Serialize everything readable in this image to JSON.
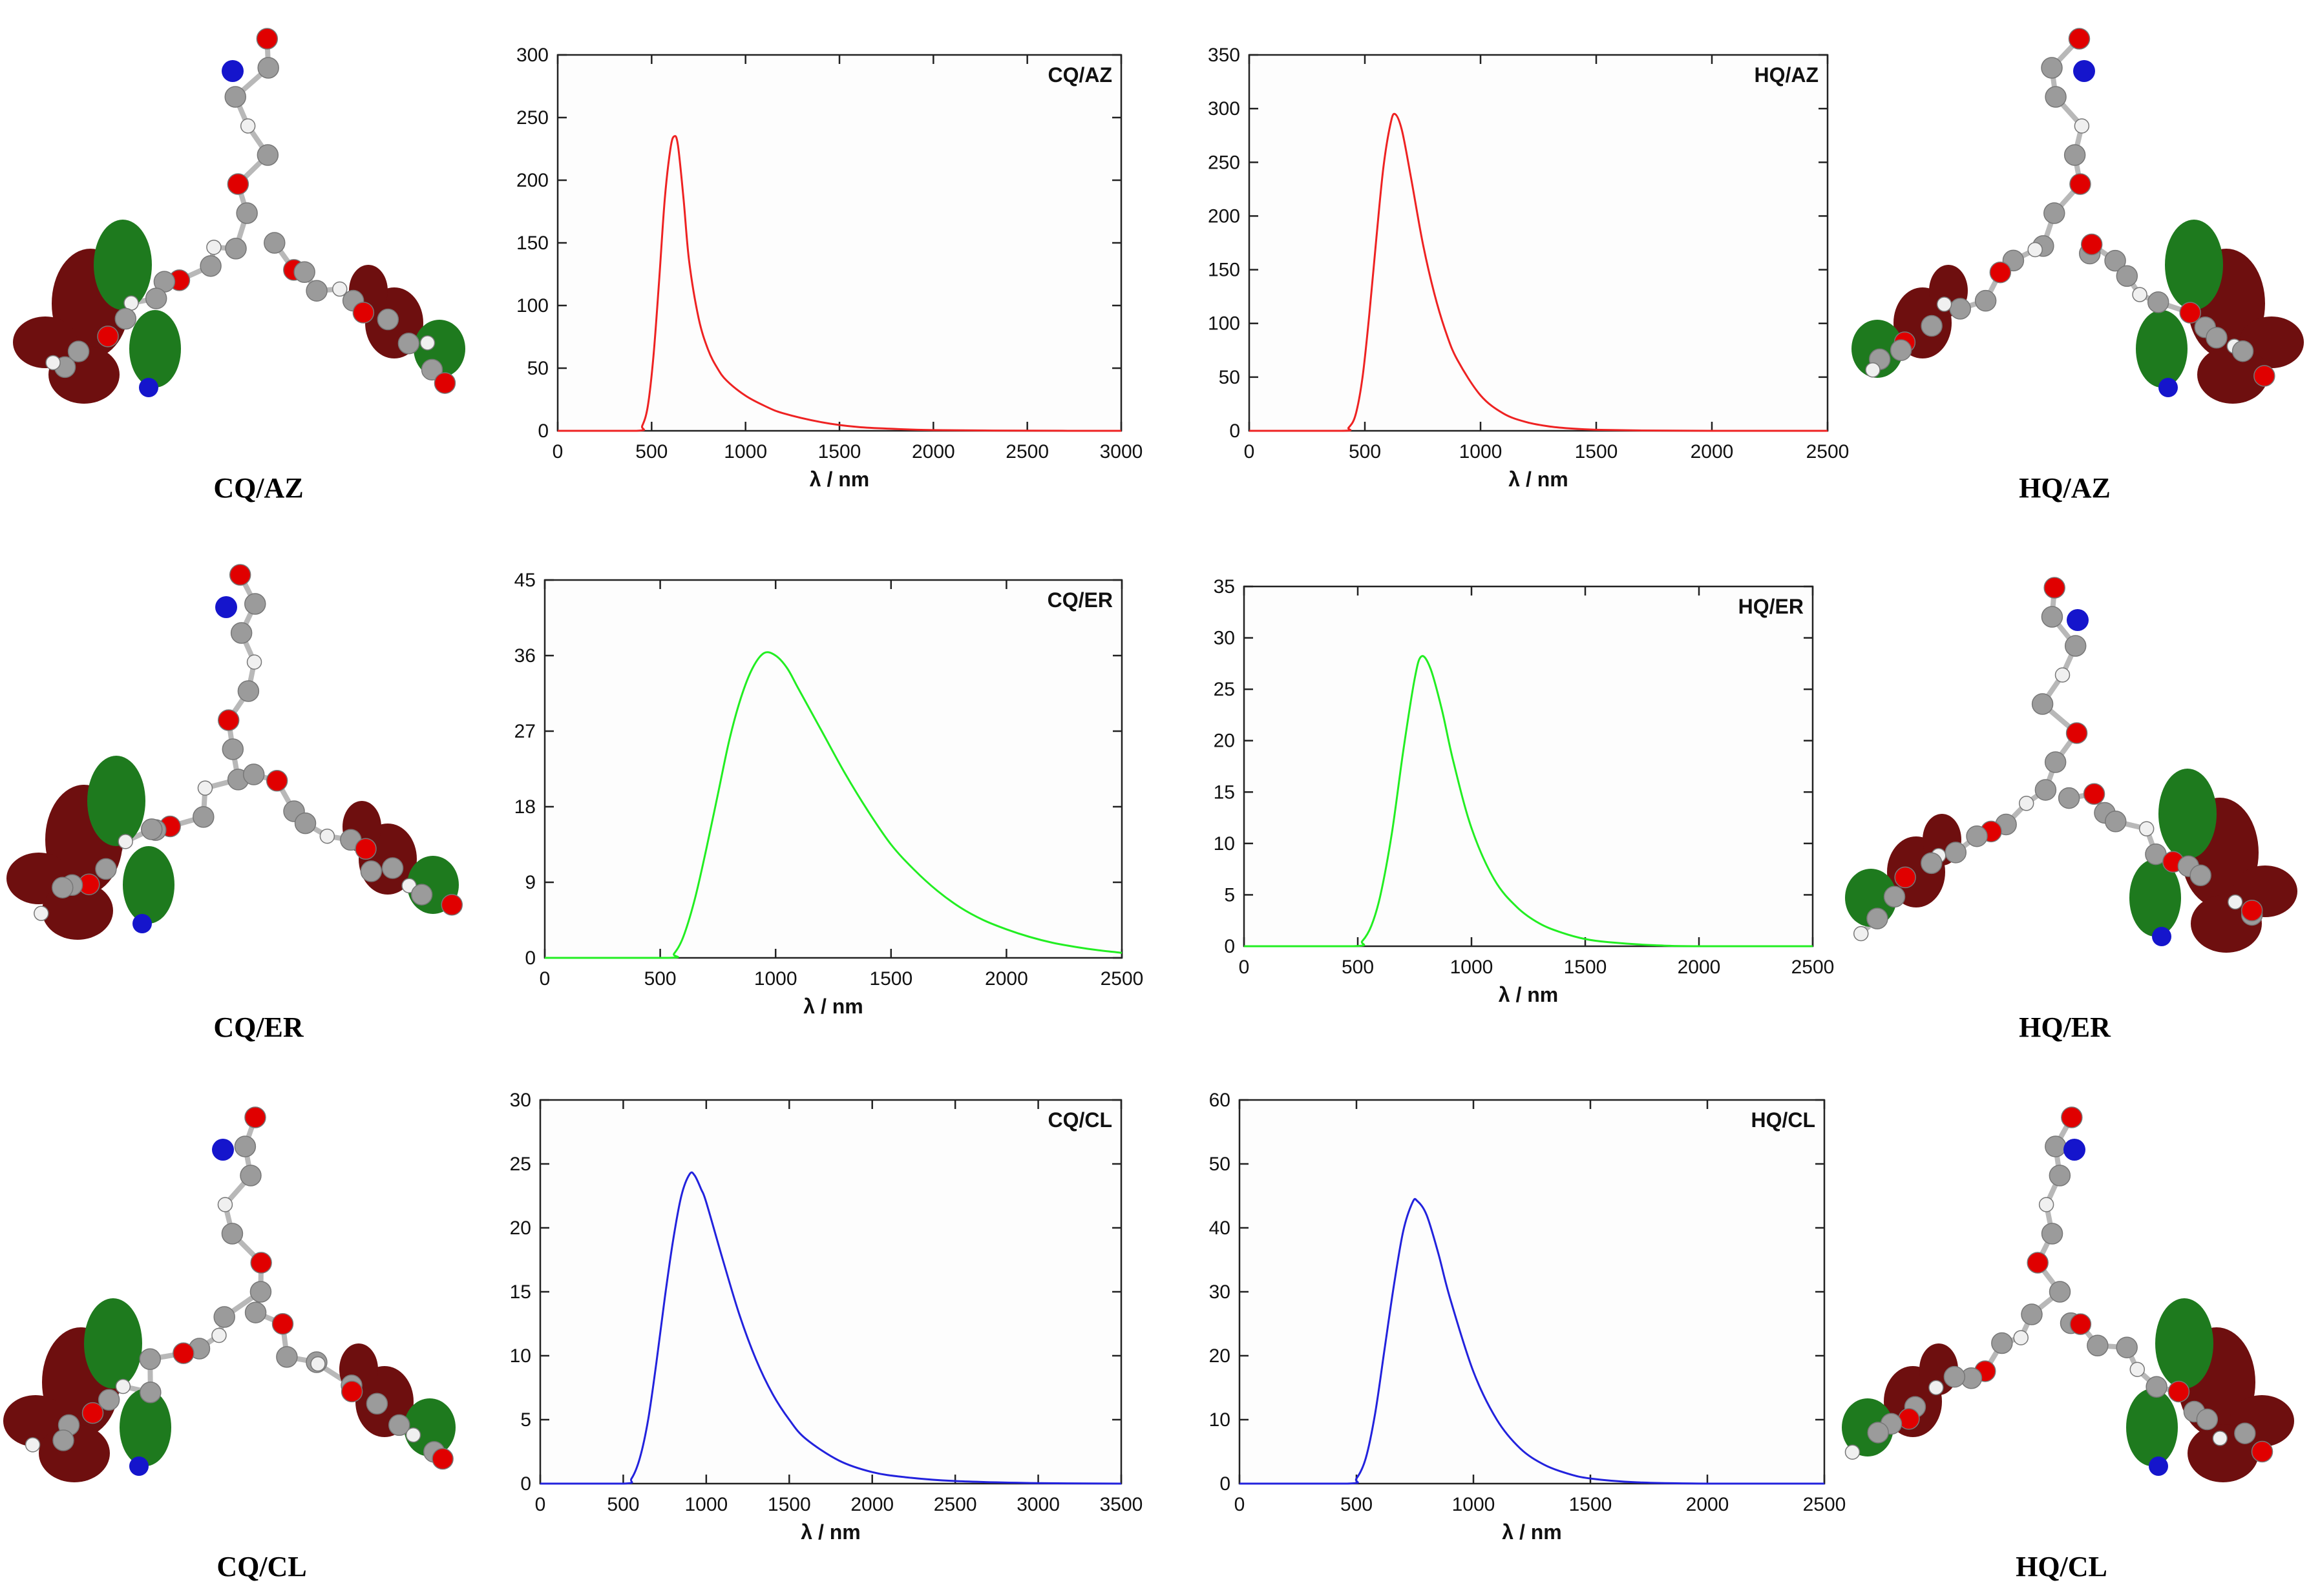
{
  "colors": {
    "red": "#ee2222",
    "green": "#22ee22",
    "blue": "#2222dd",
    "lobe_dark": "#6e0f0f",
    "lobe_green": "#1e7a1e",
    "atom_red": "#e00000",
    "atom_blue": "#1515cc",
    "atom_grey": "#9b9b9b",
    "atom_white": "#f0f0f0"
  },
  "molecules": [
    {
      "label": "CQ/AZ"
    },
    {
      "label": "HQ/AZ"
    },
    {
      "label": "CQ/ER"
    },
    {
      "label": "HQ/ER"
    },
    {
      "label": "CQ/CL"
    },
    {
      "label": "HQ/CL"
    }
  ],
  "chart_data": [
    {
      "type": "line",
      "title": "CQ/AZ",
      "xlabel": "λ / nm",
      "ylabel": "",
      "xlim": [
        0,
        3000
      ],
      "ylim": [
        0,
        300
      ],
      "xticks": [
        0,
        500,
        1000,
        1500,
        2000,
        2500,
        3000
      ],
      "yticks": [
        0,
        50,
        100,
        150,
        200,
        250,
        300
      ],
      "series": [
        {
          "name": "CQ/AZ",
          "color": "#ee2222",
          "x": [
            0,
            420,
            450,
            480,
            510,
            540,
            570,
            600,
            620,
            640,
            670,
            700,
            750,
            800,
            850,
            900,
            1000,
            1100,
            1200,
            1400,
            1600,
            1800,
            2000,
            2500,
            3000
          ],
          "y": [
            0,
            0,
            4,
            20,
            60,
            120,
            185,
            225,
            235,
            228,
            185,
            135,
            90,
            65,
            50,
            40,
            28,
            20,
            14,
            7,
            3,
            1.5,
            0.6,
            0.1,
            0
          ]
        }
      ]
    },
    {
      "type": "line",
      "title": "HQ/AZ",
      "xlabel": "λ / nm",
      "ylabel": "",
      "xlim": [
        0,
        2500
      ],
      "ylim": [
        0,
        350
      ],
      "xticks": [
        0,
        500,
        1000,
        1500,
        2000,
        2500
      ],
      "yticks": [
        0,
        50,
        100,
        150,
        200,
        250,
        300,
        350
      ],
      "series": [
        {
          "name": "HQ/AZ",
          "color": "#ee2222",
          "x": [
            0,
            400,
            430,
            460,
            490,
            520,
            550,
            580,
            610,
            630,
            660,
            700,
            750,
            800,
            850,
            900,
            1000,
            1100,
            1200,
            1300,
            1400,
            1500,
            1700,
            2000,
            2500
          ],
          "y": [
            0,
            0,
            3,
            15,
            50,
            110,
            180,
            245,
            285,
            295,
            280,
            235,
            175,
            128,
            92,
            66,
            33,
            16,
            8,
            4,
            2,
            1,
            0.3,
            0,
            0
          ]
        }
      ]
    },
    {
      "type": "line",
      "title": "CQ/ER",
      "xlabel": "λ / nm",
      "ylabel": "",
      "xlim": [
        0,
        2500
      ],
      "ylim": [
        0,
        45
      ],
      "xticks": [
        0,
        500,
        1000,
        1500,
        2000,
        2500
      ],
      "yticks": [
        0,
        9,
        18,
        27,
        36,
        45
      ],
      "series": [
        {
          "name": "CQ/ER",
          "color": "#22ee22",
          "x": [
            0,
            530,
            560,
            600,
            650,
            700,
            750,
            800,
            850,
            900,
            950,
            1000,
            1050,
            1100,
            1200,
            1300,
            1400,
            1500,
            1600,
            1700,
            1800,
            1900,
            2000,
            2100,
            2200,
            2300,
            2400,
            2500
          ],
          "y": [
            0,
            0,
            0.5,
            2.5,
            7,
            13,
            19.5,
            26,
            31,
            34.5,
            36.3,
            36,
            34.5,
            32,
            27,
            22,
            17.5,
            13.5,
            10.5,
            8,
            6,
            4.5,
            3.4,
            2.5,
            1.8,
            1.3,
            0.9,
            0.6
          ]
        }
      ]
    },
    {
      "type": "line",
      "title": "HQ/ER",
      "xlabel": "λ / nm",
      "ylabel": "",
      "xlim": [
        0,
        2500
      ],
      "ylim": [
        0,
        35
      ],
      "xticks": [
        0,
        500,
        1000,
        1500,
        2000,
        2500
      ],
      "yticks": [
        0,
        5,
        10,
        15,
        20,
        25,
        30,
        35
      ],
      "series": [
        {
          "name": "HQ/ER",
          "color": "#22ee22",
          "x": [
            0,
            480,
            520,
            560,
            600,
            650,
            700,
            750,
            780,
            820,
            870,
            920,
            1000,
            1100,
            1200,
            1300,
            1400,
            1500,
            1600,
            1800,
            2000,
            2500
          ],
          "y": [
            0,
            0,
            0.5,
            2,
            5,
            11,
            19,
            26,
            28.2,
            27,
            23,
            18,
            11.5,
            6.5,
            3.8,
            2.2,
            1.3,
            0.7,
            0.4,
            0.1,
            0,
            0
          ]
        }
      ]
    },
    {
      "type": "line",
      "title": "CQ/CL",
      "xlabel": "λ / nm",
      "ylabel": "",
      "xlim": [
        0,
        3500
      ],
      "ylim": [
        0,
        30
      ],
      "xticks": [
        0,
        500,
        1000,
        1500,
        2000,
        2500,
        3000,
        3500
      ],
      "yticks": [
        0,
        5,
        10,
        15,
        20,
        25,
        30
      ],
      "series": [
        {
          "name": "CQ/CL",
          "color": "#2222dd",
          "x": [
            0,
            500,
            550,
            600,
            650,
            700,
            750,
            800,
            850,
            900,
            930,
            970,
            1000,
            1100,
            1200,
            1300,
            1400,
            1500,
            1600,
            1800,
            2000,
            2200,
            2500,
            3000,
            3500
          ],
          "y": [
            0,
            0,
            0.4,
            2,
            5,
            9.5,
            14.5,
            19,
            22.5,
            24.2,
            24.1,
            23,
            22,
            17.5,
            13.2,
            9.7,
            7,
            5,
            3.5,
            1.8,
            0.9,
            0.5,
            0.2,
            0.04,
            0
          ]
        }
      ]
    },
    {
      "type": "line",
      "title": "HQ/CL",
      "xlabel": "λ / nm",
      "ylabel": "",
      "xlim": [
        0,
        2500
      ],
      "ylim": [
        0,
        60
      ],
      "xticks": [
        0,
        500,
        1000,
        1500,
        2000,
        2500
      ],
      "yticks": [
        0,
        10,
        20,
        30,
        40,
        50,
        60
      ],
      "series": [
        {
          "name": "HQ/CL",
          "color": "#2222dd",
          "x": [
            0,
            460,
            500,
            540,
            580,
            620,
            660,
            700,
            740,
            760,
            800,
            850,
            900,
            1000,
            1100,
            1200,
            1300,
            1400,
            1500,
            1700,
            2000,
            2500
          ],
          "y": [
            0,
            0,
            0.8,
            4,
            11,
            21,
            31,
            39.5,
            44,
            44.2,
            42,
            36,
            29,
            17.5,
            10,
            5.5,
            3,
            1.6,
            0.8,
            0.2,
            0,
            0
          ]
        }
      ]
    }
  ]
}
